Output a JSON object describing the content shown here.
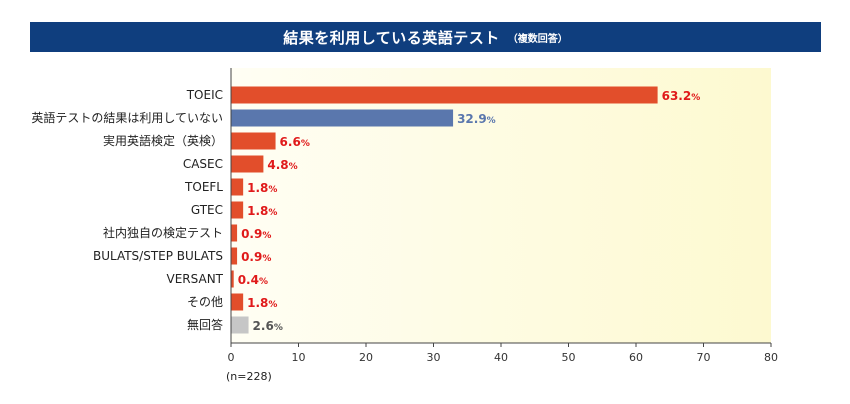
{
  "title": "結果を利用している英語テスト",
  "title_note": "（複数回答）",
  "n_note": "(n=228)",
  "colors": {
    "title_bg": "#0f3e7e",
    "highlight": "#e24e2b",
    "highlight_label": "#e01a1a",
    "unused": "#5a77ad",
    "none": "#c6c6c6",
    "none_label": "#555555",
    "plot_bg_light": "#fffef4",
    "plot_bg_dark": "#fdf9d0"
  },
  "chart_data": {
    "type": "bar",
    "orientation": "horizontal",
    "unit": "%",
    "categories": [
      "TOEIC",
      "英語テストの結果は利用していない",
      "実用英語検定（英検）",
      "CASEC",
      "TOEFL",
      "GTEC",
      "社内独自の検定テスト",
      "BULATS/STEP BULATS",
      "VERSANT",
      "その他",
      "無回答"
    ],
    "values": [
      63.2,
      32.9,
      6.6,
      4.8,
      1.8,
      1.8,
      0.9,
      0.9,
      0.4,
      1.8,
      2.6
    ],
    "value_labels": [
      "63.2",
      "32.9",
      "6.6",
      "4.8",
      "1.8",
      "1.8",
      "0.9",
      "0.9",
      "0.4",
      "1.8",
      "2.6"
    ],
    "bar_styles": [
      "highlight",
      "unused",
      "highlight",
      "highlight",
      "highlight",
      "highlight",
      "highlight",
      "highlight",
      "highlight",
      "highlight",
      "none"
    ],
    "xlim": [
      0,
      80
    ],
    "xticks": [
      0,
      10,
      20,
      30,
      40,
      50,
      60,
      70,
      80
    ],
    "grid": false
  }
}
